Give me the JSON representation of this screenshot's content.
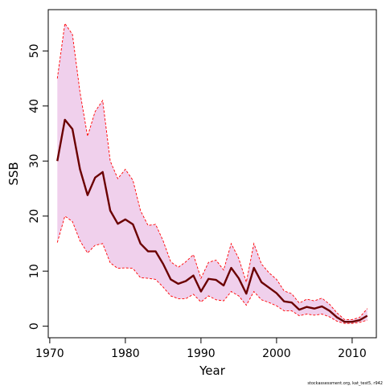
{
  "chart_data": {
    "type": "line",
    "title": "",
    "xlabel": "Year",
    "ylabel": "SSB",
    "xlim": [
      1969.8,
      2013.2
    ],
    "ylim": [
      -2.1,
      57.5
    ],
    "x_ticks": [
      1970,
      1980,
      1990,
      2000,
      2010
    ],
    "y_ticks": [
      0,
      10,
      20,
      30,
      40,
      50
    ],
    "grid": false,
    "legend": "none",
    "colors": {
      "estimate_line": "#6b0000",
      "band_fill": "#f0d0ec",
      "band_border": "#ff0000"
    },
    "x": [
      1971,
      1972,
      1973,
      1974,
      1975,
      1976,
      1977,
      1978,
      1979,
      1980,
      1981,
      1982,
      1983,
      1984,
      1985,
      1986,
      1987,
      1988,
      1989,
      1990,
      1991,
      1992,
      1993,
      1994,
      1995,
      1996,
      1997,
      1998,
      1999,
      2000,
      2001,
      2002,
      2003,
      2004,
      2005,
      2006,
      2007,
      2008,
      2009,
      2010,
      2011,
      2012
    ],
    "series": [
      {
        "values": [
          30.0,
          37.5,
          35.8,
          28.5,
          23.8,
          27.0,
          28.0,
          21.0,
          18.6,
          19.4,
          18.5,
          15.0,
          13.6,
          13.6,
          11.3,
          8.5,
          7.7,
          8.2,
          9.2,
          6.3,
          8.6,
          8.4,
          7.4,
          10.6,
          8.7,
          5.9,
          10.6,
          8.0,
          7.0,
          6.0,
          4.5,
          4.3,
          3.0,
          3.5,
          3.2,
          3.6,
          2.8,
          1.6,
          0.8,
          0.8,
          1.1,
          1.9
        ]
      },
      {
        "values": [
          45.0,
          55.0,
          53.0,
          42.5,
          34.5,
          39.0,
          41.0,
          30.0,
          26.8,
          28.5,
          26.5,
          21.0,
          18.3,
          18.5,
          15.5,
          11.7,
          10.7,
          11.7,
          13.0,
          8.7,
          11.6,
          12.0,
          10.2,
          15.0,
          12.3,
          8.0,
          15.0,
          11.3,
          9.7,
          8.5,
          6.4,
          5.9,
          4.2,
          4.9,
          4.6,
          5.1,
          4.0,
          2.4,
          1.2,
          1.2,
          1.6,
          3.2
        ]
      },
      {
        "values": [
          15.2,
          20.0,
          19.0,
          15.5,
          13.3,
          14.7,
          15.0,
          11.5,
          10.5,
          10.6,
          10.5,
          8.8,
          8.7,
          8.5,
          7.1,
          5.5,
          5.0,
          5.0,
          5.8,
          4.4,
          5.5,
          4.8,
          4.6,
          6.3,
          5.5,
          3.8,
          6.3,
          4.8,
          4.3,
          3.7,
          2.8,
          2.8,
          1.9,
          2.2,
          2.0,
          2.2,
          1.7,
          0.9,
          0.5,
          0.5,
          0.7,
          1.1
        ]
      }
    ]
  },
  "footer": {
    "credit": "stockassessment.org, kat_test5, r942"
  }
}
